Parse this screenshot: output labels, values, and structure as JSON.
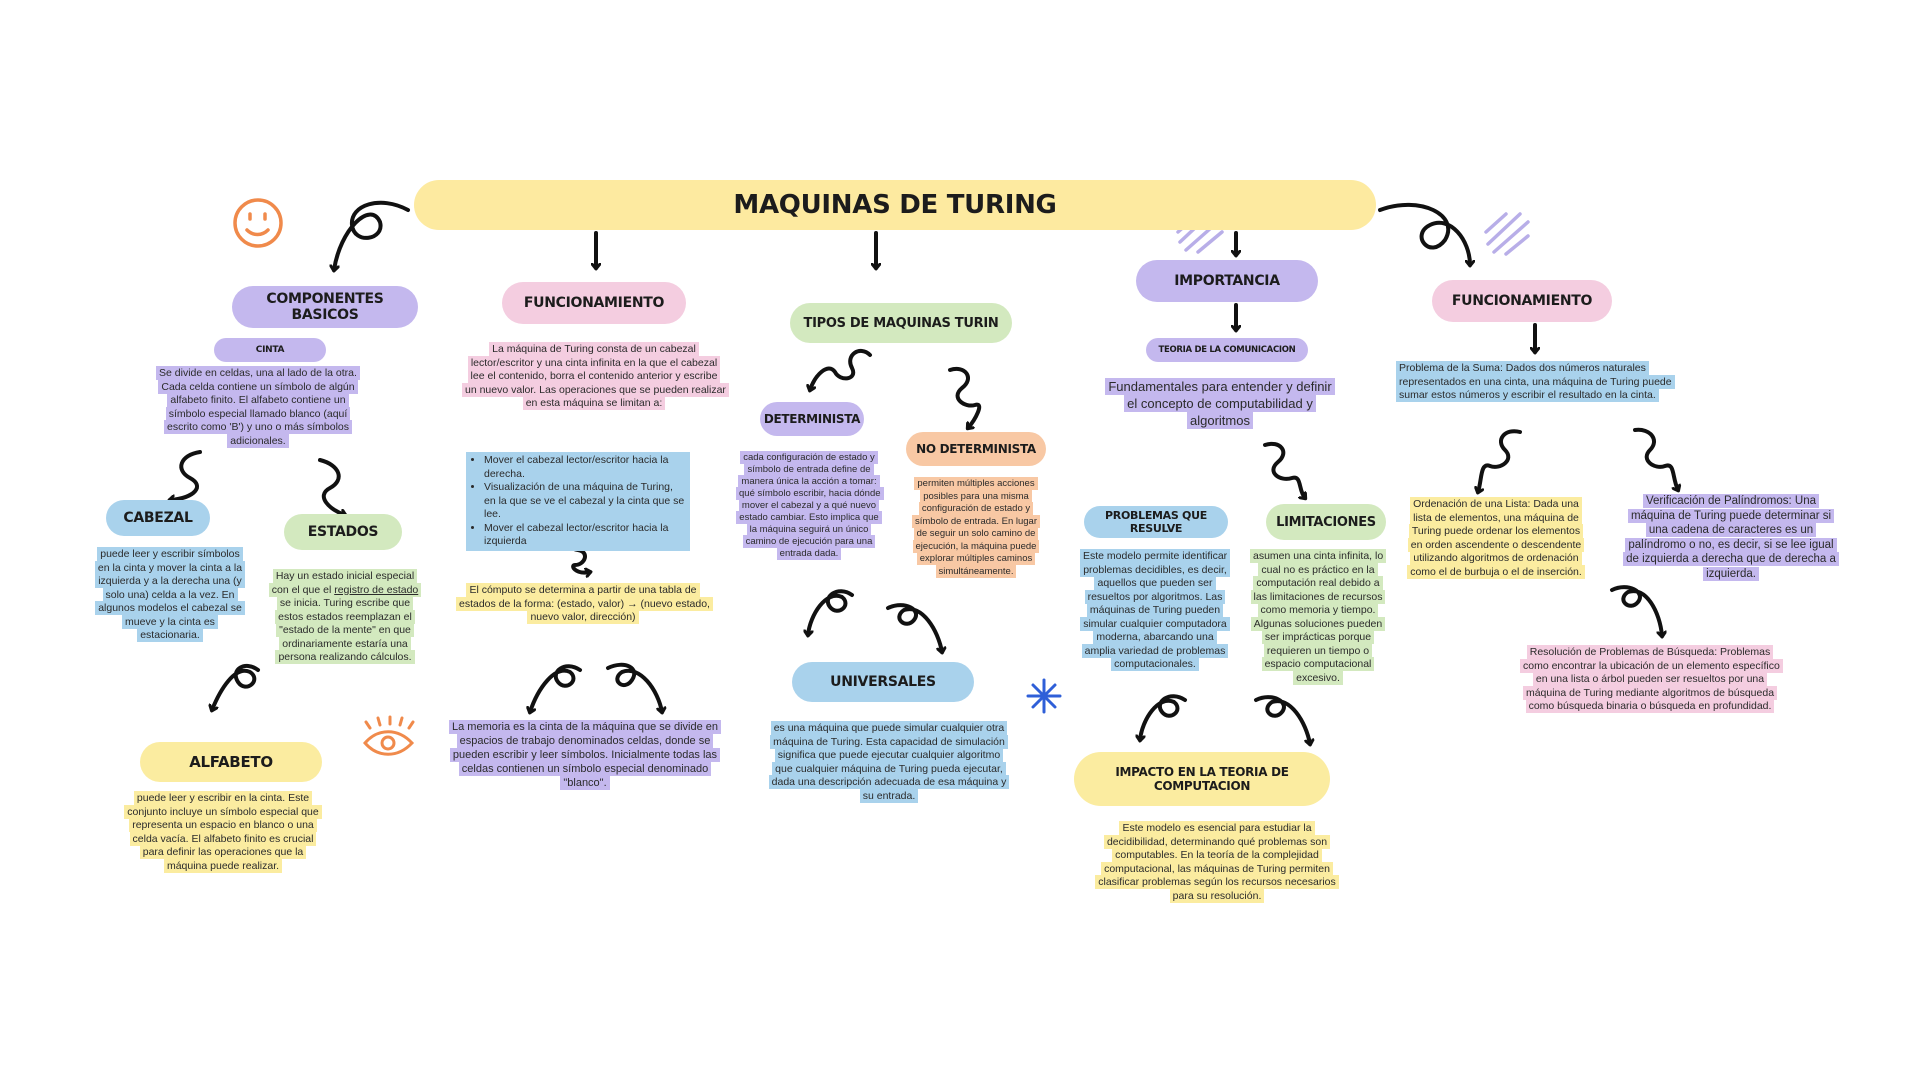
{
  "title": "MAQUINAS DE TURING",
  "componentes": {
    "heading": "COMPONENTES BASICOS",
    "cinta_label": "CINTA",
    "cinta_text": "Se divide en celdas, una al lado de la otra. Cada celda contiene un símbolo de algún alfabeto finito. El alfabeto contiene un símbolo especial llamado blanco (aquí escrito como 'B') y uno o más símbolos adicionales.",
    "cabezal_label": "CABEZAL",
    "cabezal_text": "puede leer y escribir símbolos en la cinta y mover la cinta a la izquierda y a la derecha una (y solo una) celda a la vez. En algunos modelos el cabezal se mueve y la cinta es estacionaria.",
    "estados_label": "ESTADOS",
    "estados_text_a": "Hay un estado inicial especial con el que el ",
    "estados_text_link": "registro de estado",
    "estados_text_b": " se inicia. Turing escribe que estos estados reemplazan el \"estado de la mente\" en que ordinariamente estaría una persona realizando cálculos.",
    "alfabeto_label": "ALFABETO",
    "alfabeto_text": "puede leer y escribir en la cinta. Este conjunto incluye un símbolo especial que representa un espacio en blanco o una celda vacía. El alfabeto finito es crucial para definir las operaciones que la máquina puede realizar."
  },
  "funcionamiento1": {
    "heading": "FUNCIONAMIENTO",
    "intro": "La máquina de Turing consta de un cabezal lector/escritor y una cinta infinita en la que el cabezal lee el contenido, borra el contenido anterior y escribe un nuevo valor. Las operaciones que se pueden realizar en esta máquina se limitan a:",
    "bullets": [
      "Mover el cabezal lector/escritor hacia la derecha.",
      "Visualización de una máquina de Turing, en la que se ve el cabezal y la cinta que se lee.",
      "Mover el cabezal lector/escritor hacia la izquierda"
    ],
    "computo": "El cómputo se determina a partir de una tabla de estados de la forma: (estado, valor) → (nuevo estado, nuevo valor, dirección)",
    "memoria": "La memoria es la cinta de la máquina que se divide en espacios de trabajo denominados celdas, donde se pueden escribir y leer símbolos. Inicialmente todas las celdas contienen un símbolo especial denominado \"blanco\"."
  },
  "tipos": {
    "heading": "TIPOS DE MAQUINAS TURIN",
    "det_label": "DETERMINISTA",
    "det_text": "cada configuración de estado y símbolo de entrada define de manera única la acción a tomar: qué símbolo escribir, hacia dónde mover el cabezal y a qué nuevo estado cambiar. Esto implica que la máquina seguirá un único camino de ejecución para una entrada dada.",
    "nodet_label": "NO DETERMINISTA",
    "nodet_text": "permiten múltiples acciones posibles para una misma configuración de estado y símbolo de entrada. En lugar de seguir un solo camino de ejecución, la máquina puede explorar múltiples caminos simultáneamente.",
    "univ_label": "UNIVERSALES",
    "univ_text": "es una máquina que puede simular cualquier otra máquina de Turing. Esta capacidad de simulación significa que puede ejecutar cualquier algoritmo que cualquier máquina de Turing pueda ejecutar, dada una descripción adecuada de esa máquina y su entrada."
  },
  "importancia": {
    "heading": "IMPORTANCIA",
    "teoria_label": "TEORIA DE LA COMUNICACION",
    "teoria_text": "Fundamentales para entender y definir el concepto de computabilidad y algoritmos",
    "problemas_label": "PROBLEMAS QUE RESULVE",
    "problemas_text": "Este modelo permite identificar problemas decidibles, es decir, aquellos que pueden ser resueltos por algoritmos. Las máquinas de Turing pueden simular cualquier computadora moderna, abarcando una amplia variedad de problemas computacionales.",
    "limitaciones_label": "LIMITACIONES",
    "limitaciones_text": "asumen una cinta infinita, lo cual no es práctico en la computación real debido a las limitaciones de recursos como memoria y tiempo. Algunas soluciones pueden ser imprácticas porque requieren un tiempo o espacio computacional excesivo.",
    "impacto_label": "IMPACTO EN LA TEORIA DE COMPUTACION",
    "impacto_text": "Este modelo es esencial para estudiar la decidibilidad, determinando qué problemas son computables. En la teoría de la complejidad computacional, las máquinas de Turing permiten clasificar problemas según los recursos necesarios para su resolución."
  },
  "funcionamiento2": {
    "heading": "FUNCIONAMIENTO",
    "suma": "Problema de la Suma: Dados dos números naturales representados en una cinta, una máquina de Turing puede sumar estos números y escribir el resultado en la cinta.",
    "ordenacion": "Ordenación de una Lista: Dada una lista de elementos, una máquina de Turing puede ordenar los elementos en orden ascendente o descendente utilizando algoritmos de ordenación como el de burbuja o el de inserción.",
    "palindromos": "Verificación de Palíndromos: Una máquina de Turing puede determinar si una cadena de caracteres es un palíndromo o no, es decir, si se lee igual de izquierda a derecha que de derecha a izquierda.",
    "busqueda": "Resolución de Problemas de Búsqueda: Problemas como encontrar la ubicación de un elemento específico en una lista o árbol pueden ser resueltos por una máquina de Turing mediante algoritmos de búsqueda como búsqueda binaria o búsqueda en profundidad."
  },
  "colors": {
    "title_bg": "#fdeaa0",
    "purple": "#c4b8ee",
    "pink": "#f4cde0",
    "green": "#d3e9bf",
    "blue": "#a9d2ec",
    "yellow": "#fbeca0",
    "orange": "#f8c8a4",
    "smiley": "#f08a4b",
    "star": "#2f5fd8"
  },
  "icons": [
    "smiley-icon",
    "eye-icon",
    "star-icon",
    "scribble-icon",
    "curly-arrow-icon"
  ]
}
